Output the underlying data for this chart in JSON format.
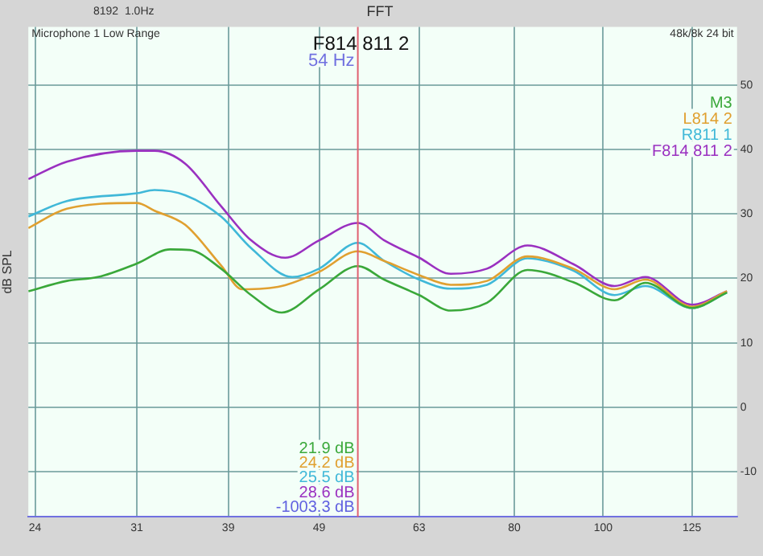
{
  "chart_data": {
    "type": "line",
    "title": "FFT",
    "ylabel": "dB SPL",
    "annotations": [
      "8192  1.0Hz",
      "Microphone 1 Low Range",
      "48k/8k 24 bit",
      "F814 811 2",
      "21.9 dB",
      "24.2 dB",
      "25.5 dB",
      "28.6 dB",
      "-1003.3 dB"
    ],
    "series": [
      {
        "name": "M3",
        "color": "#3aa83a",
        "x": [
          23.6,
          26.0,
          28.1,
          31,
          33.7,
          35.4,
          38.3,
          41.3,
          44.6,
          49,
          54,
          57.7,
          63,
          68.2,
          74.7,
          82.7,
          92.8,
          102.9,
          111.2,
          125,
          136.5
        ],
        "values": [
          18,
          19.6,
          20.2,
          22.3,
          24.5,
          24.4,
          21.5,
          17.4,
          14.7,
          18.3,
          21.9,
          19.8,
          17.4,
          15,
          16.2,
          21.3,
          19.4,
          16.6,
          19.3,
          15.4,
          17.8
        ]
      },
      {
        "name": "L814 2",
        "color": "#e0a030",
        "x": [
          23.6,
          26.0,
          31,
          32.4,
          35.0,
          38.3,
          40.4,
          44.6,
          49,
          54,
          57.7,
          63,
          68.2,
          74.7,
          82.7,
          92.8,
          102.9,
          111.2,
          125,
          136.5
        ],
        "values": [
          27.8,
          30.8,
          31.7,
          30.5,
          28.3,
          22,
          18.3,
          18.8,
          21,
          24.2,
          22.7,
          20.5,
          19,
          19.6,
          23.4,
          21.5,
          18.3,
          19.8,
          15.6,
          18
        ]
      },
      {
        "name": "R811 1",
        "color": "#40b8d8",
        "x": [
          23.6,
          26.0,
          31,
          32.4,
          35.0,
          38.3,
          41.3,
          45.8,
          49,
          54,
          57.7,
          63,
          68.2,
          74.7,
          82.7,
          92.8,
          102.9,
          111.2,
          125,
          136.5
        ],
        "values": [
          29.6,
          32,
          33.2,
          33.7,
          32.9,
          29.6,
          24.7,
          20.2,
          21.5,
          25.5,
          22.7,
          19.8,
          18.4,
          19,
          23.1,
          21.2,
          17.4,
          18.8,
          15.4,
          17.8
        ]
      },
      {
        "name": "F814 811 2",
        "color": "#9a30c0",
        "x": [
          23.6,
          26.0,
          31,
          32.4,
          35.0,
          38.3,
          41.3,
          45.0,
          49,
          54,
          57.7,
          63,
          68.2,
          74.7,
          82.7,
          92.8,
          102.9,
          111.2,
          125,
          136.5
        ],
        "values": [
          35.4,
          38.1,
          39.8,
          39.8,
          37.8,
          31.2,
          25.9,
          23.2,
          25.9,
          28.6,
          25.9,
          23.2,
          20.7,
          21.5,
          25.1,
          22.2,
          18.8,
          20.2,
          15.9,
          18
        ]
      }
    ],
    "log": "x",
    "xlim": [
      23.6,
      140
    ],
    "xticks": [
      24,
      31,
      39,
      49,
      63,
      80,
      100,
      125
    ],
    "ylim": [
      -17,
      59
    ],
    "yticks": [
      -10,
      0,
      10,
      20,
      30,
      40,
      50
    ],
    "ref_lines": [
      {
        "axis": "x",
        "value": 54,
        "label": "54 Hz",
        "color": "#e06070"
      }
    ],
    "grid": true,
    "legend": "top right",
    "marker": "none",
    "line_style": "solid"
  }
}
